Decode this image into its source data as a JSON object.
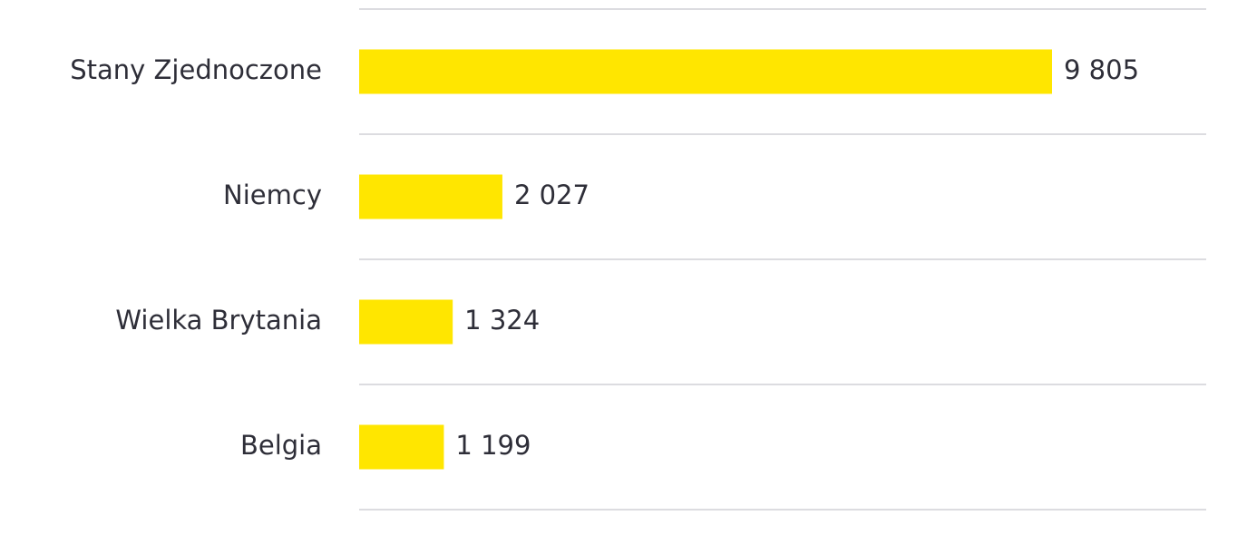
{
  "chart_data": {
    "type": "bar",
    "orientation": "horizontal",
    "categories": [
      "Stany Zjednoczone",
      "Niemcy",
      "Wielka Brytania",
      "Belgia"
    ],
    "values": [
      9805,
      2027,
      1324,
      1199
    ],
    "value_labels": [
      "9 805",
      "2 027",
      "1 324",
      "1 199"
    ],
    "color": "#ffe600"
  }
}
